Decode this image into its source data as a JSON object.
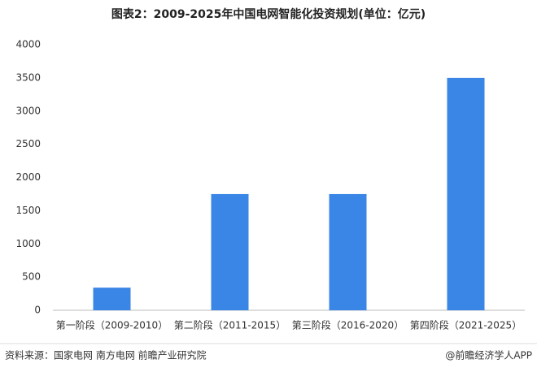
{
  "chart_data": {
    "type": "bar",
    "title": "图表2：2009-2025年中国电网智能化投资规划(单位：亿元)",
    "categories": [
      "第一阶段（2009-2010）",
      "第二阶段（2011-2015）",
      "第三阶段（2016-2020）",
      "第四阶段（2021-2025）"
    ],
    "values": [
      341,
      1750,
      1750,
      3500
    ],
    "color": "#3a86e6",
    "ylim": [
      0,
      4000
    ],
    "yticks": [
      0,
      500,
      1000,
      1500,
      2000,
      2500,
      3000,
      3500,
      4000
    ],
    "grid": false
  },
  "footer": {
    "source": "资料来源：国家电网 南方电网 前瞻产业研究院",
    "credit": "@前瞻经济学人APP"
  }
}
